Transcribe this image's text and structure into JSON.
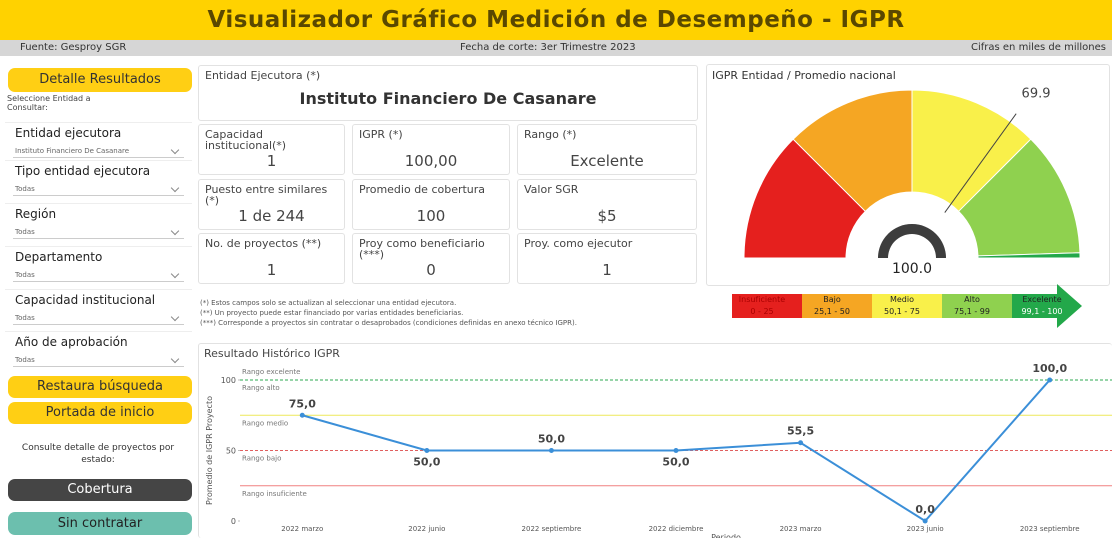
{
  "header": {
    "title": "Visualizador Gráfico Medición de Desempeño - IGPR",
    "source": "Fuente: Gesproy SGR",
    "cutoff": "Fecha de corte: 3er Trimestre 2023",
    "units": "Cifras en miles de millones"
  },
  "sidebar": {
    "detail_button": "Detalle Resultados",
    "prompt": "Seleccione Entidad a Consultar:",
    "filters": [
      {
        "label": "Entidad ejecutora",
        "value": "Instituto Financiero De Casanare"
      },
      {
        "label": "Tipo entidad ejecutora",
        "value": "Todas"
      },
      {
        "label": "Región",
        "value": "Todas"
      },
      {
        "label": "Departamento",
        "value": "Todas"
      },
      {
        "label": "Capacidad institucional",
        "value": "Todas"
      },
      {
        "label": "Año de aprobación",
        "value": "Todas"
      }
    ],
    "buttons": [
      "Restaura búsqueda",
      "Portada de inicio"
    ],
    "projects_prompt": "Consulte detalle de proyectos por estado:",
    "status_buttons": [
      "Cobertura",
      "Sin contratar"
    ]
  },
  "entity": {
    "label": "Entidad Ejecutora (*)",
    "name": "Instituto Financiero De Casanare"
  },
  "cards": [
    {
      "label": "Capacidad institucional(*)",
      "value": "1"
    },
    {
      "label": "IGPR (*)",
      "value": "100,00"
    },
    {
      "label": "Rango (*)",
      "value": "Excelente"
    },
    {
      "label": "Puesto entre similares (*)",
      "value": "1 de 244"
    },
    {
      "label": "Promedio de cobertura",
      "value": "100"
    },
    {
      "label": "Valor SGR",
      "value": "$5"
    },
    {
      "label": "No. de proyectos (**)",
      "value": "1"
    },
    {
      "label": "Proy como beneficiario (***)",
      "value": "0"
    },
    {
      "label": "Proy. como ejecutor",
      "value": "1"
    }
  ],
  "notes": [
    "(*) Estos campos solo se actualizan al seleccionar una entidad ejecutora.",
    "(**) Un proyecto puede estar financiado por varias entidades beneficiarias.",
    "(***) Corresponde a proyectos sin contratar o desaprobados (condiciones definidas en anexo técnico IGPR)."
  ],
  "legend": [
    {
      "name": "Insuficiente",
      "range": "0 - 25",
      "color": "#e5201e"
    },
    {
      "name": "Bajo",
      "range": "25,1 - 50",
      "color": "#f5a623"
    },
    {
      "name": "Medio",
      "range": "50,1 - 75",
      "color": "#f9f04a"
    },
    {
      "name": "Alto",
      "range": "75,1 - 99",
      "color": "#8fd14f"
    },
    {
      "name": "Excelente",
      "range": "99,1 - 100",
      "color": "#23a84a"
    }
  ],
  "chart_data": [
    {
      "type": "line",
      "title": "Resultado Histórico IGPR",
      "x_label": "Periodo",
      "y_label": "Promedio de IGPR Proyecto",
      "categories": [
        "2022 marzo",
        "2022 junio",
        "2022 septiembre",
        "2022 diciembre",
        "2023 marzo",
        "2023 junio",
        "2023 septiembre"
      ],
      "values": [
        75,
        50,
        50,
        50,
        55.5,
        0,
        100
      ],
      "value_labels": [
        "75,0",
        "50,0",
        "50,0",
        "50,0",
        "55,5",
        "0,0",
        "100,0"
      ],
      "color": "#3b8fd8",
      "ylim": [
        0,
        100
      ],
      "yticks": [
        0,
        50,
        100
      ],
      "bands": [
        {
          "label": "Rango excelente",
          "from": 100,
          "color": "#2eaa50"
        },
        {
          "label": "Rango alto",
          "from": 75,
          "color": "#eee85a"
        },
        {
          "label": "Rango medio",
          "from": 50,
          "color": "#e06060"
        },
        {
          "label": "Rango bajo",
          "from": 25,
          "color": "#f08080"
        },
        {
          "label": "Rango insuficiente",
          "from": 0,
          "color": "#e5201e"
        }
      ]
    },
    {
      "type": "gauge",
      "title": "IGPR Entidad / Promedio nacional",
      "value": 100,
      "value_label": "100.0",
      "target": 69.9,
      "ylim": [
        0,
        100
      ],
      "bands": [
        {
          "from": 0,
          "to": 25,
          "color": "#e5201e"
        },
        {
          "from": 25,
          "to": 50,
          "color": "#f5a623"
        },
        {
          "from": 50,
          "to": 75,
          "color": "#f9f04a"
        },
        {
          "from": 75,
          "to": 99,
          "color": "#8fd14f"
        },
        {
          "from": 99,
          "to": 100,
          "color": "#23a84a"
        }
      ]
    }
  ]
}
